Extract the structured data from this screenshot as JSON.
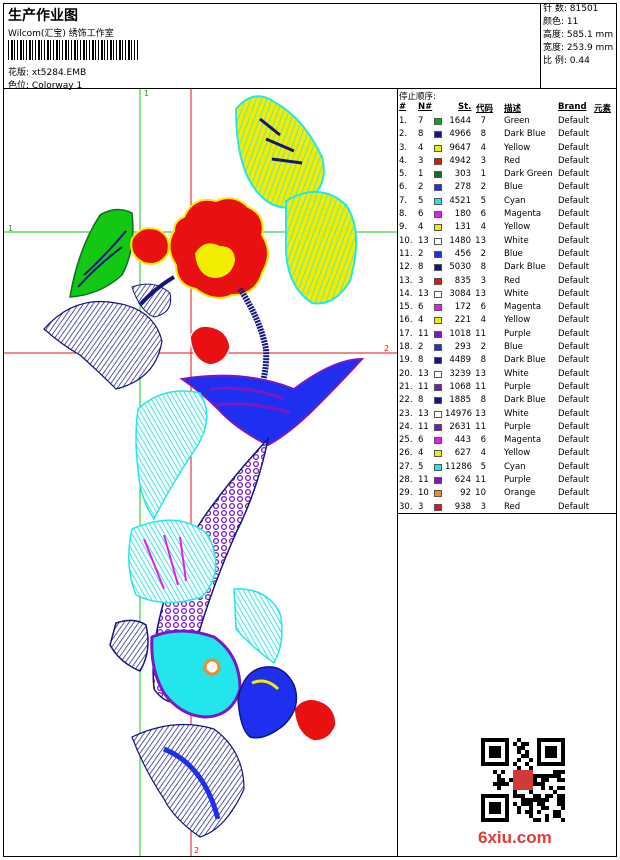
{
  "header": {
    "title": "生产作业图",
    "company": "Wilcom(汇宝) 绣饰工作室",
    "design_label": "花版:",
    "design_value": "xt5284.EMB",
    "colorway_label": "色位:",
    "colorway_value": "Colorway 1"
  },
  "specs": [
    {
      "label": "针 数:",
      "value": "81501"
    },
    {
      "label": "颜色:",
      "value": "11"
    },
    {
      "label": "高度:",
      "value": "585.1 mm"
    },
    {
      "label": "宽度:",
      "value": "253.9 mm"
    },
    {
      "label": "比 例:",
      "value": "0.44"
    }
  ],
  "guides": {
    "v1": "1",
    "h1": "1",
    "v2": "2",
    "h2": "2"
  },
  "stop_sequence": {
    "heading": "停止顺序:",
    "columns": {
      "idx": "#",
      "n": "N#",
      "st": "St.",
      "code": "代码",
      "desc": "描述",
      "brand": "Brand",
      "elem": "元素"
    },
    "rows": [
      {
        "idx": "1.",
        "n": "7",
        "color": "#12a612",
        "st": "1644",
        "code": "7",
        "desc": "Green",
        "brand": "Default"
      },
      {
        "idx": "2.",
        "n": "8",
        "color": "#141482",
        "st": "4966",
        "code": "8",
        "desc": "Dark Blue",
        "brand": "Default"
      },
      {
        "idx": "3.",
        "n": "4",
        "color": "#f2ec00",
        "st": "9647",
        "code": "4",
        "desc": "Yellow",
        "brand": "Default"
      },
      {
        "idx": "4.",
        "n": "3",
        "color": "#e81010",
        "st": "4942",
        "code": "3",
        "desc": "Red",
        "brand": "Default"
      },
      {
        "idx": "5.",
        "n": "1",
        "color": "#0c6e1e",
        "st": "303",
        "code": "1",
        "desc": "Dark Green",
        "brand": "Default"
      },
      {
        "idx": "6.",
        "n": "2",
        "color": "#1f2ff0",
        "st": "278",
        "code": "2",
        "desc": "Blue",
        "brand": "Default"
      },
      {
        "idx": "7.",
        "n": "5",
        "color": "#22e6ec",
        "st": "4521",
        "code": "5",
        "desc": "Cyan",
        "brand": "Default"
      },
      {
        "idx": "8.",
        "n": "6",
        "color": "#ee18ee",
        "st": "180",
        "code": "6",
        "desc": "Magenta",
        "brand": "Default"
      },
      {
        "idx": "9.",
        "n": "4",
        "color": "#f2ec00",
        "st": "131",
        "code": "4",
        "desc": "Yellow",
        "brand": "Default"
      },
      {
        "idx": "10.",
        "n": "13",
        "color": "#ffffff",
        "st": "1480",
        "code": "13",
        "desc": "White",
        "brand": "Default"
      },
      {
        "idx": "11.",
        "n": "2",
        "color": "#1f2ff0",
        "st": "456",
        "code": "2",
        "desc": "Blue",
        "brand": "Default"
      },
      {
        "idx": "12.",
        "n": "8",
        "color": "#141482",
        "st": "5030",
        "code": "8",
        "desc": "Dark Blue",
        "brand": "Default"
      },
      {
        "idx": "13.",
        "n": "3",
        "color": "#e81010",
        "st": "835",
        "code": "3",
        "desc": "Red",
        "brand": "Default"
      },
      {
        "idx": "14.",
        "n": "13",
        "color": "#ffffff",
        "st": "3084",
        "code": "13",
        "desc": "White",
        "brand": "Default"
      },
      {
        "idx": "15.",
        "n": "6",
        "color": "#ee18ee",
        "st": "172",
        "code": "6",
        "desc": "Magenta",
        "brand": "Default"
      },
      {
        "idx": "16.",
        "n": "4",
        "color": "#f2ec00",
        "st": "221",
        "code": "4",
        "desc": "Yellow",
        "brand": "Default"
      },
      {
        "idx": "17.",
        "n": "11",
        "color": "#7a18c8",
        "st": "1018",
        "code": "11",
        "desc": "Purple",
        "brand": "Default"
      },
      {
        "idx": "18.",
        "n": "2",
        "color": "#1f2ff0",
        "st": "293",
        "code": "2",
        "desc": "Blue",
        "brand": "Default"
      },
      {
        "idx": "19.",
        "n": "8",
        "color": "#141482",
        "st": "4489",
        "code": "8",
        "desc": "Dark Blue",
        "brand": "Default"
      },
      {
        "idx": "20.",
        "n": "13",
        "color": "#ffffff",
        "st": "3239",
        "code": "13",
        "desc": "White",
        "brand": "Default"
      },
      {
        "idx": "21.",
        "n": "11",
        "color": "#7a18c8",
        "st": "1068",
        "code": "11",
        "desc": "Purple",
        "brand": "Default"
      },
      {
        "idx": "22.",
        "n": "8",
        "color": "#141482",
        "st": "1885",
        "code": "8",
        "desc": "Dark Blue",
        "brand": "Default"
      },
      {
        "idx": "23.",
        "n": "13",
        "color": "#ffffff",
        "st": "14976",
        "code": "13",
        "desc": "White",
        "brand": "Default"
      },
      {
        "idx": "24.",
        "n": "11",
        "color": "#7a18c8",
        "st": "2631",
        "code": "11",
        "desc": "Purple",
        "brand": "Default"
      },
      {
        "idx": "25.",
        "n": "6",
        "color": "#ee18ee",
        "st": "443",
        "code": "6",
        "desc": "Magenta",
        "brand": "Default"
      },
      {
        "idx": "26.",
        "n": "4",
        "color": "#f2ec00",
        "st": "627",
        "code": "4",
        "desc": "Yellow",
        "brand": "Default"
      },
      {
        "idx": "27.",
        "n": "5",
        "color": "#22e6ec",
        "st": "11286",
        "code": "5",
        "desc": "Cyan",
        "brand": "Default"
      },
      {
        "idx": "28.",
        "n": "11",
        "color": "#7a18c8",
        "st": "624",
        "code": "11",
        "desc": "Purple",
        "brand": "Default"
      },
      {
        "idx": "29.",
        "n": "10",
        "color": "#f08a2a",
        "st": "92",
        "code": "10",
        "desc": "Orange",
        "brand": "Default"
      },
      {
        "idx": "30.",
        "n": "3",
        "color": "#e81010",
        "st": "938",
        "code": "3",
        "desc": "Red",
        "brand": "Default"
      }
    ]
  },
  "watermark": "6xiu.com"
}
